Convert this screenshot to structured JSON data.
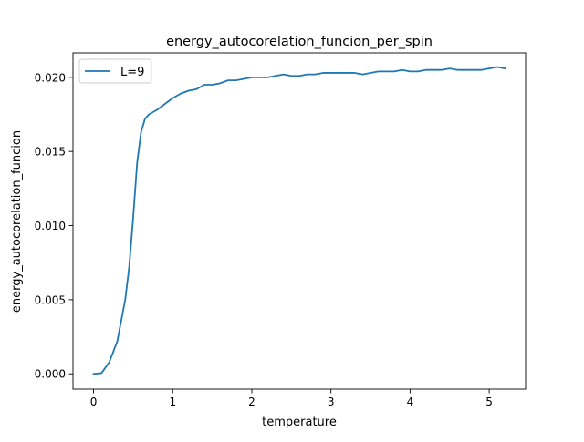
{
  "chart_data": {
    "type": "line",
    "title": "energy_autocorelation_funcion_per_spin",
    "xlabel": "temperature",
    "ylabel": "energy_autocorelation_funcion",
    "xlim": [
      -0.26,
      5.46
    ],
    "ylim": [
      -0.00103,
      0.02165
    ],
    "x_ticks": [
      0,
      1,
      2,
      3,
      4,
      5
    ],
    "x_tick_labels": [
      "0",
      "1",
      "2",
      "3",
      "4",
      "5"
    ],
    "y_ticks": [
      0.0,
      0.005,
      0.01,
      0.015,
      0.02
    ],
    "y_tick_labels": [
      "0.000",
      "0.005",
      "0.010",
      "0.015",
      "0.020"
    ],
    "grid": false,
    "legend_position": "top-left",
    "series": [
      {
        "name": "L=9",
        "color": "#1f77b4",
        "x": [
          0.0,
          0.1,
          0.2,
          0.3,
          0.4,
          0.45,
          0.5,
          0.55,
          0.6,
          0.65,
          0.7,
          0.8,
          0.9,
          1.0,
          1.1,
          1.2,
          1.3,
          1.4,
          1.5,
          1.6,
          1.7,
          1.8,
          1.9,
          2.0,
          2.1,
          2.2,
          2.3,
          2.4,
          2.5,
          2.6,
          2.7,
          2.8,
          2.9,
          3.0,
          3.1,
          3.2,
          3.3,
          3.4,
          3.5,
          3.6,
          3.7,
          3.8,
          3.9,
          4.0,
          4.1,
          4.2,
          4.3,
          4.4,
          4.5,
          4.6,
          4.7,
          4.8,
          4.9,
          5.0,
          5.1,
          5.2
        ],
        "y": [
          0.0,
          5e-05,
          0.0008,
          0.0022,
          0.005,
          0.0072,
          0.0105,
          0.0142,
          0.0163,
          0.0172,
          0.0175,
          0.0178,
          0.0182,
          0.0186,
          0.0189,
          0.0191,
          0.0192,
          0.0195,
          0.0195,
          0.0196,
          0.0198,
          0.0198,
          0.0199,
          0.02,
          0.02,
          0.02,
          0.0201,
          0.0202,
          0.0201,
          0.0201,
          0.0202,
          0.0202,
          0.0203,
          0.0203,
          0.0203,
          0.0203,
          0.0203,
          0.0202,
          0.0203,
          0.0204,
          0.0204,
          0.0204,
          0.0205,
          0.0204,
          0.0204,
          0.0205,
          0.0205,
          0.0205,
          0.0206,
          0.0205,
          0.0205,
          0.0205,
          0.0205,
          0.0206,
          0.0207,
          0.0206
        ]
      }
    ]
  }
}
